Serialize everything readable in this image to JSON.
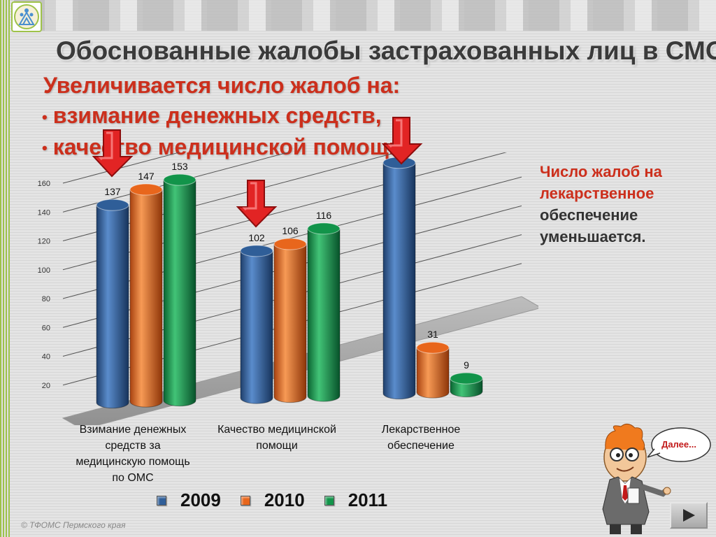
{
  "title": "Обоснованные жалобы застрахованных лиц в СМО",
  "lead": "Увеличивается число жалоб на:",
  "bullets": [
    "взимание денежных средств,",
    "качество медицинской помощи."
  ],
  "side_note": {
    "line1": "Число жалоб на лекарственное",
    "line2": "обеспечение уменьшается."
  },
  "footer": "© ТФОМС Пермского края",
  "bubble": "Далее...",
  "icons": {
    "logo": "tfoms-logo-icon",
    "arrow": "down-arrow-icon",
    "mascot": "professor-mascot-icon",
    "next": "play-next-icon"
  },
  "colors": {
    "accent": "#cc2f1c",
    "series": [
      "#2f5e98",
      "#e8661c",
      "#12944a"
    ],
    "arrow": "#e22424"
  },
  "chart_data": {
    "type": "bar",
    "categories": [
      "Взимание денежных средств за медицинскую помощь по ОМС",
      "Качество медицинской помощи",
      "Лекарственное обеспечение"
    ],
    "category_lines": [
      [
        "Взимание денежных",
        "средств за",
        "медицинскую помощь",
        "по ОМС"
      ],
      [
        "Качество медицинской",
        "помощи"
      ],
      [
        "Лекарственное",
        "обеспечение"
      ]
    ],
    "series": [
      {
        "name": "2009",
        "values": [
          137,
          102,
          160
        ]
      },
      {
        "name": "2010",
        "values": [
          147,
          106,
          31
        ]
      },
      {
        "name": "2011",
        "values": [
          153,
          116,
          9
        ]
      }
    ],
    "yticks": [
      0,
      20,
      40,
      60,
      80,
      100,
      120,
      140,
      160
    ],
    "ylim": [
      0,
      160
    ],
    "grid": true,
    "legend": "bottom",
    "style": "3d-cylinder"
  }
}
